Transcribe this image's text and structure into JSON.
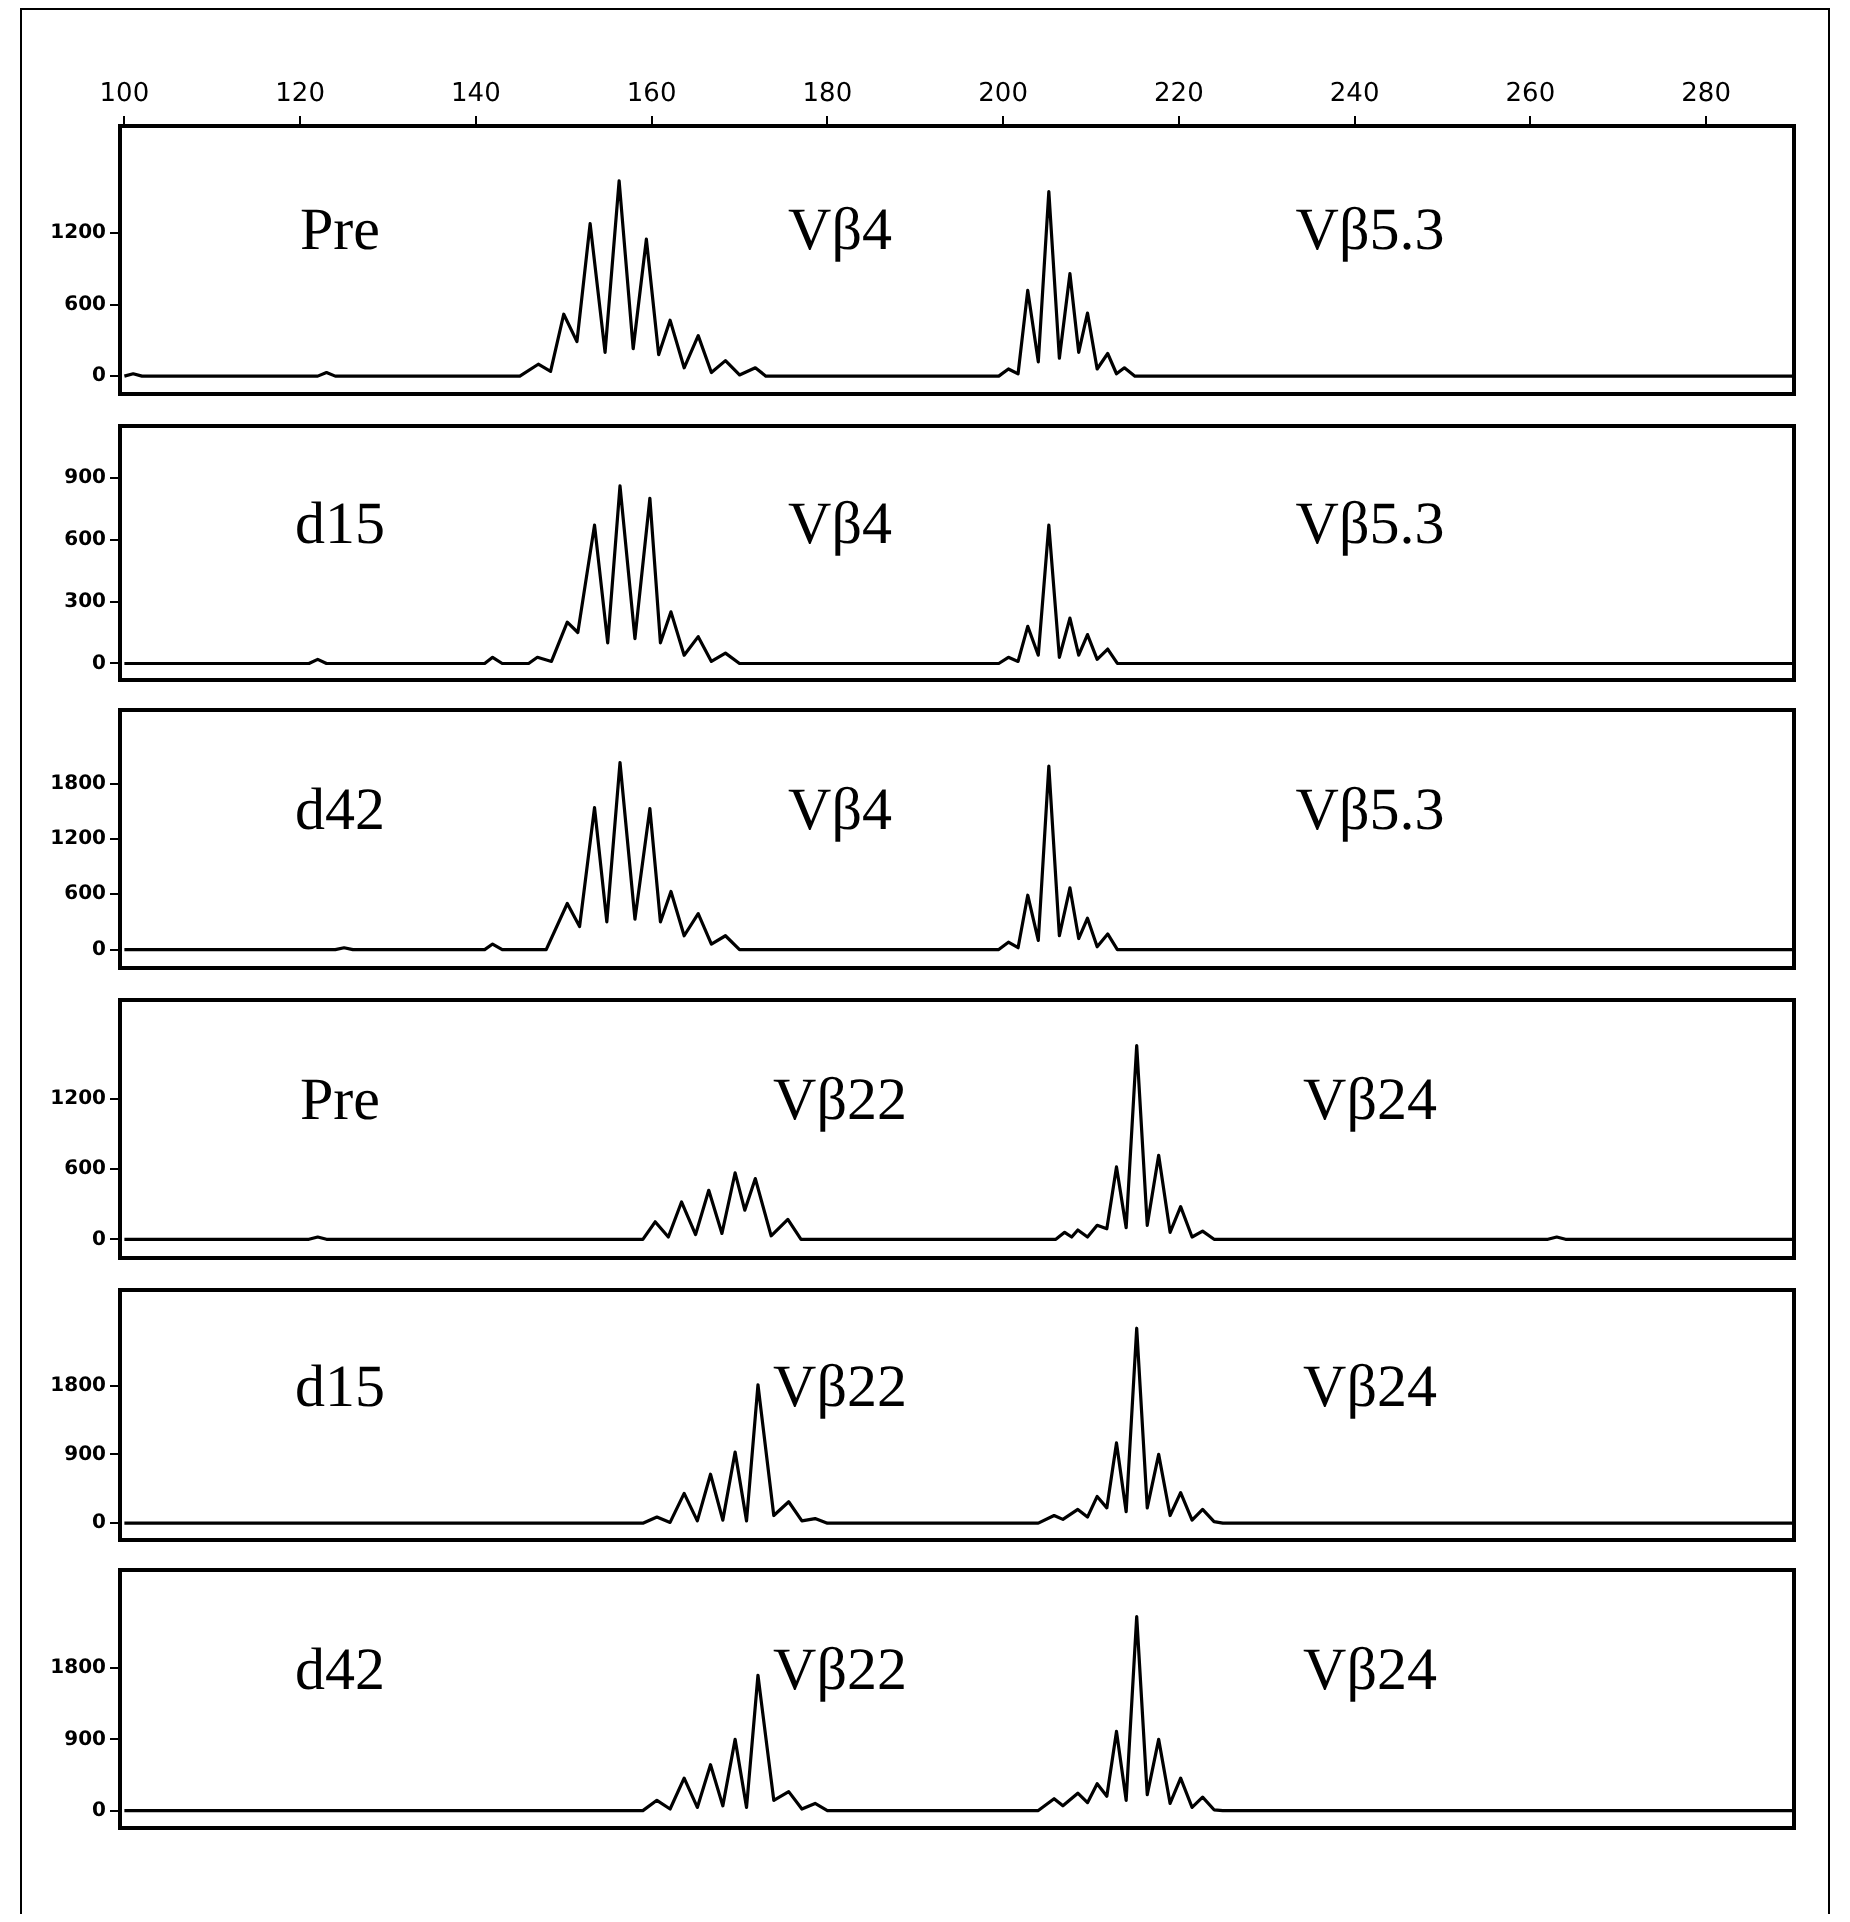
{
  "chart_data": [
    {
      "type": "line",
      "title": "Pre",
      "xlim": [
        99.5,
        290
      ],
      "xticks": [
        100,
        120,
        140,
        160,
        180,
        200,
        220,
        240,
        260,
        280
      ],
      "ylim": [
        -150,
        2100
      ],
      "yticks": [
        0,
        600,
        1200
      ],
      "legend": false,
      "annotations": [
        "Vβ4",
        "Vβ5.3"
      ],
      "series": [
        {
          "color": "#000000",
          "x": [
            100,
            101,
            102,
            122,
            123,
            124,
            145,
            147.1,
            148.5,
            150.0,
            151.5,
            153.0,
            154.7,
            156.3,
            157.9,
            159.4,
            160.8,
            162.1,
            163.7,
            165.3,
            166.8,
            168.4,
            170,
            171.8,
            173,
            199.5,
            200.6,
            201.7,
            202.8,
            204,
            205.2,
            206.4,
            207.6,
            208.6,
            209.6,
            210.7,
            211.9,
            212.9,
            213.8,
            215,
            290
          ],
          "values": [
            0,
            20,
            0,
            0,
            30,
            0,
            0,
            100,
            40,
            520,
            290,
            1280,
            200,
            1640,
            230,
            1150,
            180,
            470,
            70,
            340,
            30,
            130,
            10,
            70,
            0,
            0,
            60,
            20,
            720,
            120,
            1550,
            150,
            860,
            200,
            530,
            60,
            190,
            20,
            70,
            0,
            0
          ]
        }
      ]
    },
    {
      "type": "line",
      "title": "d15",
      "xlim": [
        99.5,
        290
      ],
      "xticks": [
        100,
        120,
        140,
        160,
        180,
        200,
        220,
        240,
        260,
        280
      ],
      "ylim": [
        -80,
        1150
      ],
      "yticks": [
        0,
        300,
        600,
        900
      ],
      "legend": false,
      "tick_labels": "y",
      "annotations": [
        "Vβ4",
        "Vβ5.3"
      ],
      "series": [
        {
          "color": "#000000",
          "x": [
            100,
            121,
            122,
            123,
            141,
            141.9,
            143,
            146,
            147,
            148.6,
            150.4,
            151.6,
            153.5,
            155,
            156.4,
            158.1,
            159.8,
            161,
            162.2,
            163.7,
            165.3,
            166.8,
            168.4,
            170,
            199.5,
            200.6,
            201.7,
            202.8,
            204,
            205.2,
            206.4,
            207.6,
            208.6,
            209.6,
            210.7,
            211.9,
            213,
            290
          ],
          "values": [
            0,
            0,
            20,
            0,
            0,
            30,
            0,
            0,
            30,
            10,
            200,
            150,
            670,
            100,
            860,
            120,
            800,
            100,
            250,
            40,
            130,
            10,
            50,
            0,
            0,
            30,
            10,
            180,
            40,
            670,
            30,
            220,
            40,
            140,
            20,
            70,
            0,
            0
          ]
        }
      ]
    },
    {
      "type": "line",
      "title": "d42",
      "xlim": [
        99.5,
        290
      ],
      "xticks": [
        100,
        120,
        140,
        160,
        180,
        200,
        220,
        240,
        260,
        280
      ],
      "ylim": [
        -200,
        2600
      ],
      "yticks": [
        0,
        600,
        1200,
        1800
      ],
      "legend": false,
      "tick_labels": "y",
      "annotations": [
        "Vβ4",
        "Vβ5.3"
      ],
      "series": [
        {
          "color": "#000000",
          "x": [
            100,
            124,
            125,
            126,
            141,
            141.9,
            143,
            148,
            150.4,
            151.8,
            153.5,
            154.9,
            156.4,
            158.1,
            159.8,
            161,
            162.2,
            163.7,
            165.3,
            166.8,
            168.4,
            170,
            199.5,
            200.6,
            201.7,
            202.8,
            204,
            205.2,
            206.4,
            207.6,
            208.6,
            209.6,
            210.7,
            211.9,
            213,
            290
          ],
          "values": [
            0,
            0,
            20,
            0,
            0,
            60,
            0,
            0,
            500,
            250,
            1540,
            300,
            2030,
            330,
            1530,
            300,
            630,
            150,
            390,
            60,
            150,
            0,
            0,
            80,
            20,
            590,
            100,
            1990,
            150,
            670,
            120,
            340,
            30,
            170,
            0,
            0
          ]
        }
      ]
    },
    {
      "type": "line",
      "title": "Pre",
      "xlim": [
        99.5,
        290
      ],
      "xticks": [
        100,
        120,
        140,
        160,
        180,
        200,
        220,
        240,
        260,
        280
      ],
      "ylim": [
        -160,
        2050
      ],
      "yticks": [
        0,
        600,
        1200
      ],
      "legend": false,
      "tick_labels": "y",
      "annotations": [
        "Vβ22",
        "Vβ24"
      ],
      "series": [
        {
          "color": "#000000",
          "x": [
            100,
            121,
            122,
            123,
            159,
            160.4,
            161.9,
            163.4,
            165,
            166.5,
            168,
            169.5,
            170.6,
            171.8,
            173.6,
            175.5,
            177,
            206,
            207,
            207.8,
            208.5,
            209.6,
            210.7,
            211.8,
            212.9,
            214,
            215.2,
            216.4,
            217.7,
            219,
            220.2,
            221.5,
            222.7,
            224,
            262,
            263,
            264,
            290
          ],
          "values": [
            0,
            0,
            20,
            0,
            0,
            150,
            20,
            320,
            40,
            420,
            50,
            570,
            250,
            520,
            30,
            170,
            0,
            0,
            60,
            20,
            80,
            20,
            120,
            90,
            620,
            100,
            1660,
            120,
            720,
            60,
            280,
            20,
            70,
            0,
            0,
            20,
            0,
            0
          ]
        }
      ]
    },
    {
      "type": "line",
      "title": "d15",
      "xlim": [
        99.5,
        290
      ],
      "xticks": [
        100,
        120,
        140,
        160,
        180,
        200,
        220,
        240,
        260,
        280
      ],
      "ylim": [
        -220,
        3050
      ],
      "yticks": [
        0,
        900,
        1800
      ],
      "legend": false,
      "tick_labels": "y",
      "annotations": [
        "Vβ22",
        "Vβ24"
      ],
      "series": [
        {
          "color": "#000000",
          "x": [
            100,
            159,
            160.6,
            162.1,
            163.7,
            165.2,
            166.7,
            168.1,
            169.5,
            170.8,
            172.1,
            173.9,
            175.6,
            177.1,
            178.6,
            180,
            204,
            205.8,
            206.8,
            208.5,
            209.6,
            210.7,
            211.8,
            212.9,
            214,
            215.2,
            216.4,
            217.7,
            219,
            220.2,
            221.5,
            222.7,
            224,
            225,
            290
          ],
          "values": [
            0,
            0,
            80,
            10,
            390,
            30,
            640,
            40,
            930,
            30,
            1810,
            100,
            280,
            30,
            60,
            0,
            0,
            100,
            50,
            180,
            80,
            350,
            200,
            1050,
            150,
            2550,
            200,
            900,
            100,
            400,
            40,
            180,
            20,
            0,
            0
          ]
        }
      ]
    },
    {
      "type": "line",
      "title": "d42",
      "xlim": [
        99.5,
        290
      ],
      "xticks": [
        100,
        120,
        140,
        160,
        180,
        200,
        220,
        240,
        260,
        280
      ],
      "ylim": [
        -220,
        3040
      ],
      "yticks": [
        0,
        900,
        1800
      ],
      "legend": false,
      "tick_labels": "y",
      "annotations": [
        "Vβ22",
        "Vβ24"
      ],
      "series": [
        {
          "color": "#000000",
          "x": [
            100,
            159,
            160.6,
            162.1,
            163.7,
            165.2,
            166.7,
            168.1,
            169.5,
            170.8,
            172.1,
            173.9,
            175.6,
            177.1,
            178.6,
            180,
            204,
            205.8,
            206.8,
            208.5,
            209.6,
            210.7,
            211.8,
            212.9,
            214,
            215.2,
            216.4,
            217.7,
            219,
            220.2,
            221.5,
            222.7,
            224,
            225,
            290
          ],
          "values": [
            0,
            0,
            130,
            20,
            410,
            40,
            580,
            60,
            900,
            40,
            1710,
            130,
            240,
            20,
            90,
            0,
            0,
            150,
            60,
            220,
            100,
            340,
            180,
            1000,
            130,
            2450,
            200,
            900,
            90,
            410,
            40,
            170,
            10,
            0,
            0
          ]
        }
      ]
    }
  ]
}
